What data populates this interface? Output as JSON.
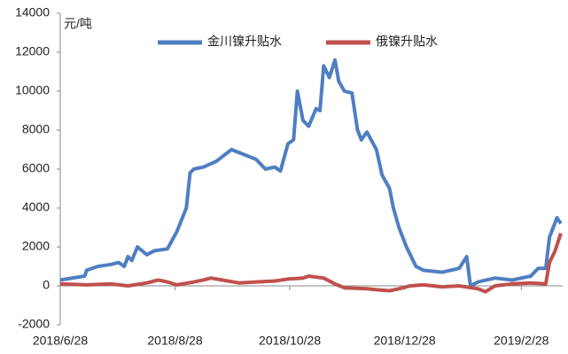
{
  "chart_data": {
    "type": "line",
    "unit_label": "元/吨",
    "xlim": [
      "2018/6/28",
      "2019/3/22"
    ],
    "xticks": [
      "2018/6/28",
      "2018/8/28",
      "2018/10/28",
      "2018/12/28",
      "2019/2/28"
    ],
    "ylim": [
      -2000,
      14000
    ],
    "yticks": [
      -2000,
      0,
      2000,
      4000,
      6000,
      8000,
      10000,
      12000,
      14000
    ],
    "legend": "top",
    "series": [
      {
        "name": "金川镍升贴水",
        "color": "#4f7ec2",
        "x": [
          "2018/6/28",
          "2018/7/11",
          "2018/7/12",
          "2018/7/18",
          "2018/7/25",
          "2018/7/29",
          "2018/8/1",
          "2018/8/3",
          "2018/8/5",
          "2018/8/8",
          "2018/8/13",
          "2018/8/17",
          "2018/8/24",
          "2018/8/29",
          "2018/9/3",
          "2018/9/5",
          "2018/9/7",
          "2018/9/12",
          "2018/9/19",
          "2018/9/27",
          "2018/10/10",
          "2018/10/15",
          "2018/10/20",
          "2018/10/23",
          "2018/10/27",
          "2018/10/30",
          "2018/11/1",
          "2018/11/4",
          "2018/11/7",
          "2018/11/11",
          "2018/11/13",
          "2018/11/15",
          "2018/11/18",
          "2018/11/21",
          "2018/11/23",
          "2018/11/26",
          "2018/11/30",
          "2018/12/3",
          "2018/12/5",
          "2018/12/8",
          "2018/12/13",
          "2018/12/16",
          "2018/12/20",
          "2018/12/22",
          "2018/12/25",
          "2018/12/29",
          "2019/1/3",
          "2019/1/7",
          "2019/1/17",
          "2019/1/26",
          "2019/1/30",
          "2019/2/1",
          "2019/2/5",
          "2019/2/14",
          "2019/2/23",
          "2019/3/5",
          "2019/3/9",
          "2019/3/13",
          "2019/3/15",
          "2019/3/19",
          "2019/3/21"
        ],
        "values": [
          300,
          500,
          800,
          1000,
          1100,
          1200,
          1000,
          1500,
          1300,
          2000,
          1600,
          1800,
          1900,
          2800,
          4000,
          5800,
          6000,
          6100,
          6400,
          7000,
          6500,
          6000,
          6100,
          5900,
          7300,
          7500,
          10000,
          8500,
          8200,
          9100,
          9000,
          11300,
          10700,
          11600,
          10500,
          10000,
          9900,
          8000,
          7500,
          7900,
          7000,
          5700,
          5000,
          4000,
          3000,
          2000,
          1000,
          800,
          700,
          900,
          1500,
          0,
          200,
          400,
          300,
          500,
          900,
          900,
          2500,
          3500,
          3200
        ]
      },
      {
        "name": "俄镍升贴水",
        "color": "#c0504d",
        "x": [
          "2018/6/28",
          "2018/7/12",
          "2018/7/25",
          "2018/8/3",
          "2018/8/13",
          "2018/8/19",
          "2018/8/24",
          "2018/8/29",
          "2018/9/7",
          "2018/9/12",
          "2018/9/16",
          "2018/9/22",
          "2018/10/1",
          "2018/10/10",
          "2018/10/20",
          "2018/10/27",
          "2018/11/4",
          "2018/11/7",
          "2018/11/15",
          "2018/11/21",
          "2018/11/26",
          "2018/12/8",
          "2018/12/13",
          "2018/12/20",
          "2018/12/25",
          "2018/12/31",
          "2019/1/7",
          "2019/1/17",
          "2019/1/26",
          "2019/2/5",
          "2019/2/9",
          "2019/2/14",
          "2019/2/23",
          "2019/3/5",
          "2019/3/13",
          "2019/3/15",
          "2019/3/18",
          "2019/3/21"
        ],
        "values": [
          100,
          50,
          100,
          0,
          150,
          300,
          200,
          50,
          200,
          300,
          400,
          300,
          150,
          200,
          250,
          350,
          400,
          500,
          400,
          100,
          -100,
          -150,
          -200,
          -250,
          -150,
          0,
          50,
          -50,
          0,
          -150,
          -300,
          0,
          100,
          150,
          100,
          1200,
          1800,
          2700
        ]
      }
    ]
  }
}
